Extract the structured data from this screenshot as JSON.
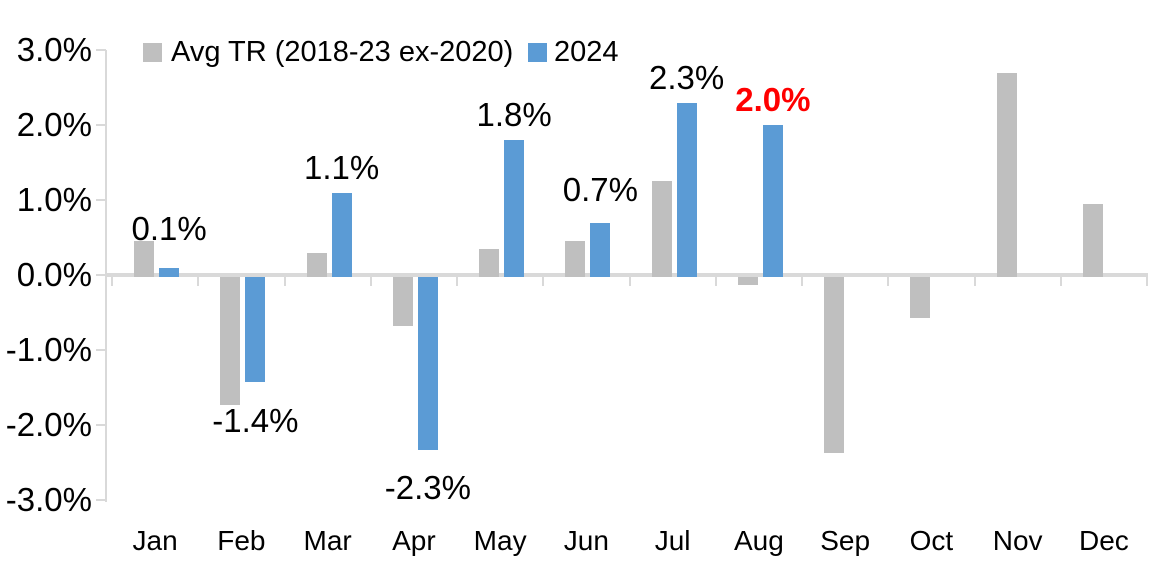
{
  "chart_data": {
    "type": "bar",
    "title": "",
    "categories": [
      "Jan",
      "Feb",
      "Mar",
      "Apr",
      "May",
      "Jun",
      "Jul",
      "Aug",
      "Sep",
      "Oct",
      "Nov",
      "Dec"
    ],
    "y_axis": {
      "ticks": [
        "3.0%",
        "2.0%",
        "1.0%",
        "0.0%",
        "-1.0%",
        "-2.0%",
        "-3.0%"
      ],
      "max": 3.0,
      "min": -3.0,
      "unit": "%"
    },
    "grid": false,
    "legend_position": "top",
    "series": [
      {
        "name": "Avg TR (2018-23 ex-2020)",
        "color": "#BFBFBF",
        "values": [
          0.45,
          -1.7,
          0.3,
          -0.65,
          0.35,
          0.45,
          1.25,
          -0.1,
          -2.35,
          -0.55,
          2.7,
          0.95
        ]
      },
      {
        "name": "2024",
        "color": "#5B9BD5",
        "values": [
          0.1,
          -1.4,
          1.1,
          -2.3,
          1.8,
          0.7,
          2.3,
          2.0,
          null,
          null,
          null,
          null
        ],
        "data_labels": [
          "0.1%",
          "-1.4%",
          "1.1%",
          "-2.3%",
          "1.8%",
          "0.7%",
          "2.3%",
          "2.0%"
        ],
        "label_colors": [
          "#000000",
          "#000000",
          "#000000",
          "#000000",
          "#000000",
          "#000000",
          "#000000",
          "#FF0000"
        ],
        "label_bold": [
          false,
          false,
          false,
          false,
          false,
          false,
          false,
          true
        ]
      }
    ],
    "axis_color": "#D9D9D9"
  }
}
